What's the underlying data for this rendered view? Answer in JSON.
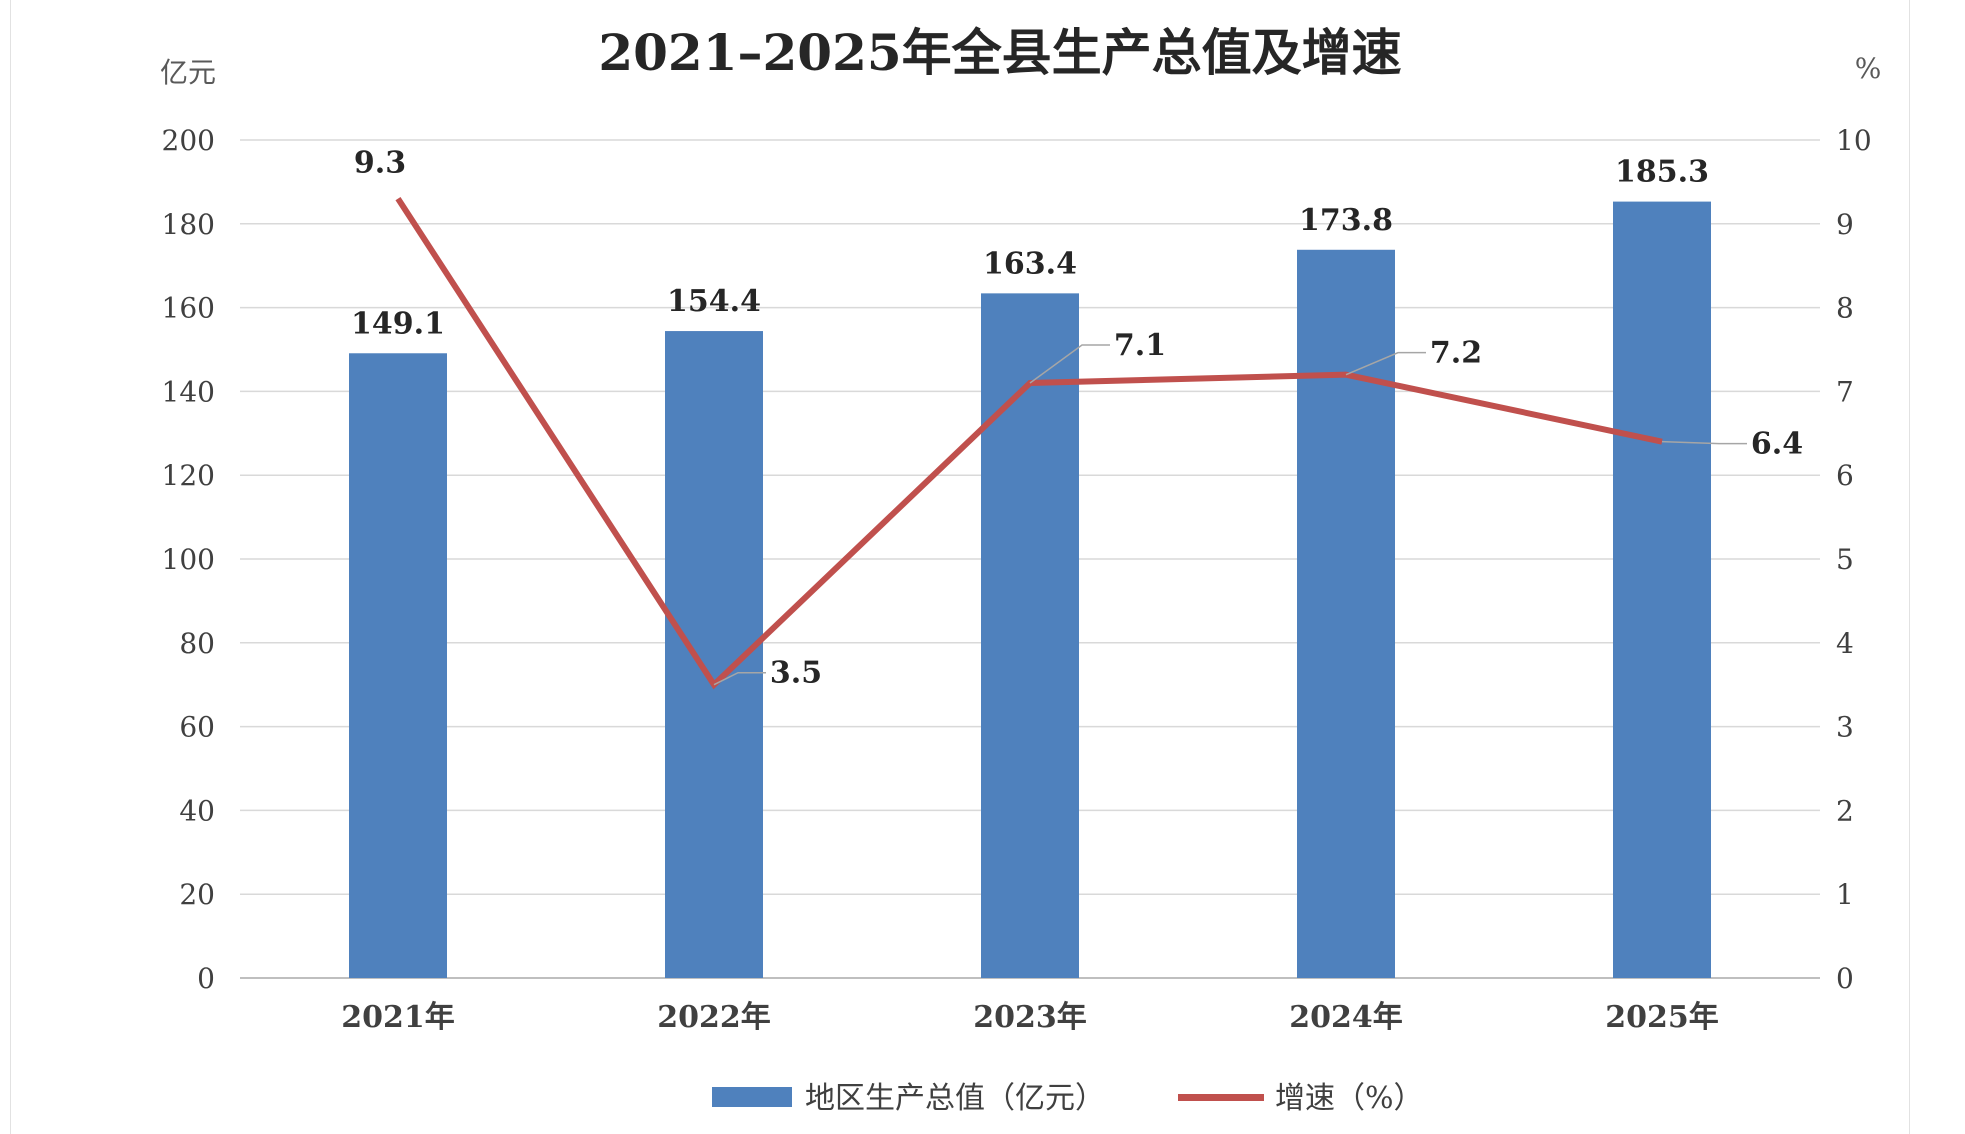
{
  "chart_data": {
    "type": "bar",
    "title": "2021–2025年全县生产总值及增速",
    "ylabel_left": "亿元",
    "ylabel_right": "%",
    "categories": [
      "2021年",
      "2022年",
      "2023年",
      "2024年",
      "2025年"
    ],
    "series": [
      {
        "name": "地区生产总值（亿元）",
        "type": "bar",
        "axis": "left",
        "color": "#4F81BD",
        "values": [
          149.1,
          154.4,
          163.4,
          173.8,
          185.3
        ],
        "labels": [
          "149.1",
          "154.4",
          "163.4",
          "173.8",
          "185.3"
        ]
      },
      {
        "name": "增速（%）",
        "type": "line",
        "axis": "right",
        "color": "#C0504D",
        "values": [
          9.3,
          3.5,
          7.1,
          7.2,
          6.4
        ],
        "labels": [
          "9.3",
          "3.5",
          "7.1",
          "7.2",
          "6.4"
        ]
      }
    ],
    "ylim_left": [
      0,
      200
    ],
    "yticks_left": [
      "0",
      "20",
      "40",
      "60",
      "80",
      "100",
      "120",
      "140",
      "160",
      "180",
      "200"
    ],
    "ylim_right": [
      0,
      10
    ],
    "yticks_right": [
      "0",
      "1",
      "2",
      "3",
      "4",
      "5",
      "6",
      "7",
      "8",
      "9",
      "10"
    ],
    "grid": true,
    "legend_position": "bottom"
  }
}
